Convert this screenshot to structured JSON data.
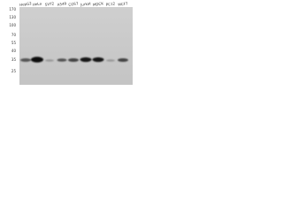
{
  "lanes": [
    "HepG2",
    "HeLa",
    "SVT2",
    "A549",
    "COS7",
    "Jurkat",
    "MDCK",
    "PC12",
    "MCF7"
  ],
  "markers": [
    "170",
    "130",
    "100",
    "70",
    "55",
    "40",
    "35",
    "25"
  ]
}
